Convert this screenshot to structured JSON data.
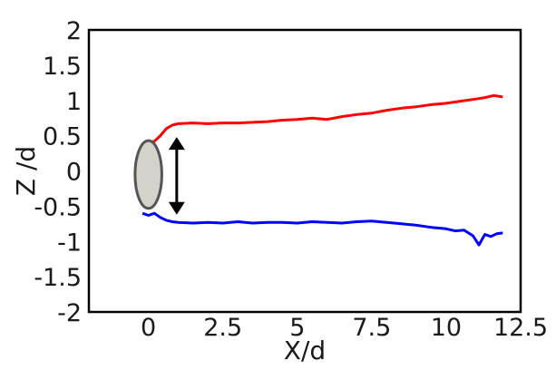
{
  "chart_data": {
    "type": "line",
    "title": "",
    "xlabel": "X/d",
    "ylabel": "Z /d",
    "xlim": [
      -2.0,
      12.5
    ],
    "ylim": [
      -2,
      2
    ],
    "x_ticks": [
      {
        "value": 0,
        "label": "0"
      },
      {
        "value": 2.5,
        "label": "2.5"
      },
      {
        "value": 5,
        "label": "5"
      },
      {
        "value": 7.5,
        "label": "7.5"
      },
      {
        "value": 10,
        "label": "10"
      },
      {
        "value": 12.5,
        "label": "12.5"
      }
    ],
    "y_ticks": [
      {
        "value": 2,
        "label": "2"
      },
      {
        "value": 1.5,
        "label": "1.5"
      },
      {
        "value": 1,
        "label": "1"
      },
      {
        "value": 0.5,
        "label": "0.5"
      },
      {
        "value": 0,
        "label": "0"
      },
      {
        "value": -0.5,
        "label": "-0.5"
      },
      {
        "value": -1,
        "label": "-1"
      },
      {
        "value": -1.5,
        "label": "-1.5"
      },
      {
        "value": -2,
        "label": "-2"
      }
    ],
    "grid": false,
    "series": [
      {
        "color": "#ff0000",
        "x": [
          -0.2,
          0.0,
          0.2,
          0.4,
          0.6,
          0.8,
          1.0,
          1.5,
          2.0,
          2.5,
          3.0,
          3.5,
          4.0,
          4.5,
          5.0,
          5.5,
          6.0,
          6.5,
          7.0,
          7.5,
          8.0,
          8.5,
          9.0,
          9.5,
          10.0,
          10.5,
          11.0,
          11.3,
          11.6,
          11.9
        ],
        "y": [
          0.37,
          0.4,
          0.42,
          0.5,
          0.6,
          0.65,
          0.67,
          0.68,
          0.67,
          0.68,
          0.68,
          0.69,
          0.7,
          0.72,
          0.73,
          0.75,
          0.73,
          0.77,
          0.8,
          0.82,
          0.86,
          0.89,
          0.91,
          0.94,
          0.96,
          0.99,
          1.02,
          1.04,
          1.07,
          1.05
        ]
      },
      {
        "color": "#0000ff",
        "x": [
          -0.2,
          0.0,
          0.2,
          0.4,
          0.6,
          0.8,
          1.0,
          1.5,
          2.0,
          2.5,
          3.0,
          3.5,
          4.0,
          4.5,
          5.0,
          5.5,
          6.0,
          6.5,
          7.0,
          7.5,
          8.0,
          8.5,
          9.0,
          9.5,
          10.0,
          10.3,
          10.6,
          10.9,
          11.1,
          11.3,
          11.5,
          11.7,
          11.9
        ],
        "y": [
          -0.6,
          -0.63,
          -0.6,
          -0.66,
          -0.7,
          -0.72,
          -0.73,
          -0.74,
          -0.73,
          -0.74,
          -0.72,
          -0.74,
          -0.73,
          -0.73,
          -0.74,
          -0.72,
          -0.73,
          -0.74,
          -0.72,
          -0.71,
          -0.73,
          -0.75,
          -0.77,
          -0.8,
          -0.82,
          -0.85,
          -0.84,
          -0.92,
          -1.05,
          -0.9,
          -0.93,
          -0.89,
          -0.88
        ]
      }
    ],
    "annotations": {
      "ellipse": {
        "cx": 0.0,
        "cy": -0.05,
        "rx": 0.45,
        "ry": 0.48,
        "fill": "#d3d3cc",
        "stroke": "#555555"
      },
      "double_arrow": {
        "x": 0.95,
        "y1": 0.48,
        "y2": -0.62,
        "color": "#000000"
      }
    }
  }
}
